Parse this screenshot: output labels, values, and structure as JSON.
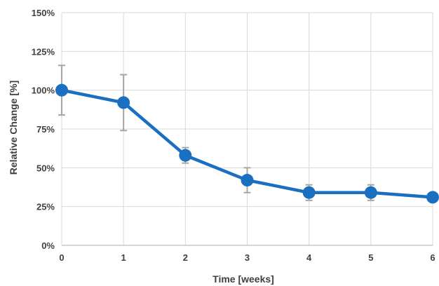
{
  "chart_data": {
    "type": "line",
    "title": "",
    "xlabel": "Time [weeks]",
    "ylabel": "Relative Change [%]",
    "x": [
      0,
      1,
      2,
      3,
      4,
      5,
      6
    ],
    "xlim": [
      0,
      6
    ],
    "ylim": [
      0,
      150
    ],
    "y_ticks": [
      "0%",
      "25%",
      "50%",
      "75%",
      "100%",
      "125%",
      "150%"
    ],
    "x_ticks": [
      "0",
      "1",
      "2",
      "3",
      "4",
      "5",
      "6"
    ],
    "grid": true,
    "series": [
      {
        "name": "",
        "values": [
          100,
          92,
          58,
          42,
          34,
          34,
          31
        ],
        "error": [
          16,
          18,
          5,
          8,
          5,
          5,
          0
        ],
        "color": "#1a6fc0",
        "error_color": "#a6a6a6"
      }
    ]
  }
}
